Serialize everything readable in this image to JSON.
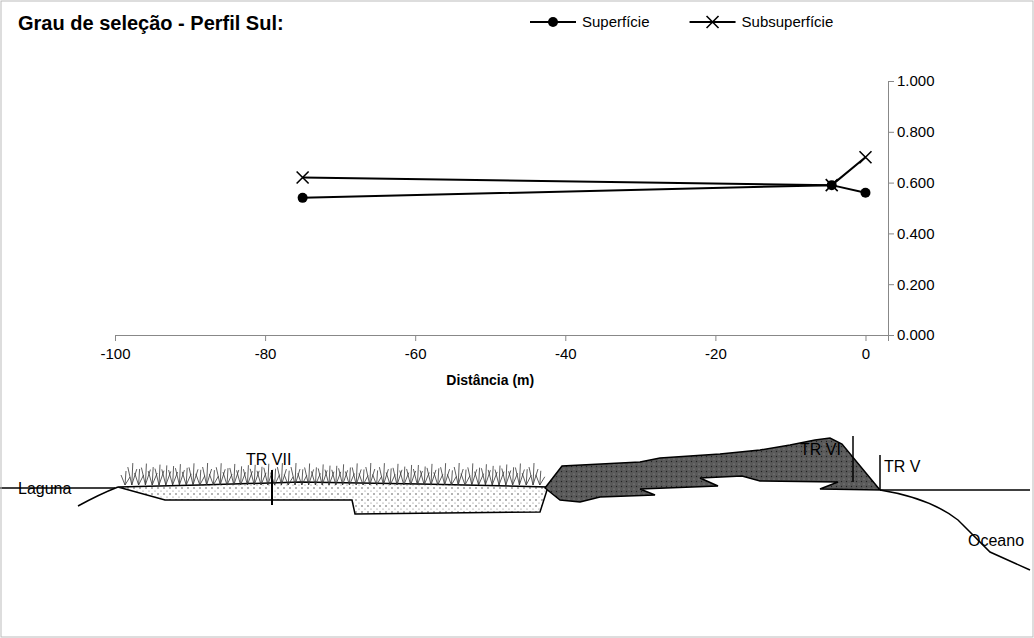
{
  "chart_data": {
    "type": "line",
    "title": "Grau de seleção - Perfil Sul:",
    "x_label": "Distância (m)",
    "x": [
      -75,
      -4.5,
      0
    ],
    "series": [
      {
        "name": "Superfície",
        "color": "#000000",
        "marker": "circle",
        "line_style": "solid",
        "values": [
          0.54,
          0.59,
          0.56
        ]
      },
      {
        "name": "Subsuperfície",
        "color": "#000000",
        "marker": "x",
        "line_style": "solid",
        "values": [
          0.62,
          0.59,
          0.7
        ]
      }
    ],
    "xlim": [
      -100,
      3
    ],
    "xticks": [
      -100,
      -80,
      -60,
      -40,
      -20,
      0
    ],
    "ylim": [
      0,
      1
    ],
    "yticks": [
      {
        "value": 0,
        "label": "0.000"
      },
      {
        "value": 0.2,
        "label": "0.200"
      },
      {
        "value": 0.4,
        "label": "0.400"
      },
      {
        "value": 0.6,
        "label": "0.600"
      },
      {
        "value": 0.8,
        "label": "0.800"
      },
      {
        "value": 1,
        "label": "1.000"
      }
    ],
    "grid": false,
    "legend": "top",
    "annotations": [
      "Laguna",
      "TR VII",
      "TR VI",
      "TR V",
      "Oceano"
    ]
  }
}
